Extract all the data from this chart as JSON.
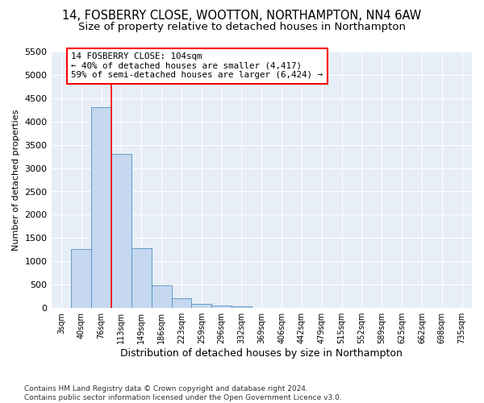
{
  "title1": "14, FOSBERRY CLOSE, WOOTTON, NORTHAMPTON, NN4 6AW",
  "title2": "Size of property relative to detached houses in Northampton",
  "xlabel": "Distribution of detached houses by size in Northampton",
  "ylabel": "Number of detached properties",
  "footnote": "Contains HM Land Registry data © Crown copyright and database right 2024.\nContains public sector information licensed under the Open Government Licence v3.0.",
  "bar_labels": [
    "3sqm",
    "40sqm",
    "76sqm",
    "113sqm",
    "149sqm",
    "186sqm",
    "223sqm",
    "259sqm",
    "296sqm",
    "332sqm",
    "369sqm",
    "406sqm",
    "442sqm",
    "479sqm",
    "515sqm",
    "552sqm",
    "589sqm",
    "625sqm",
    "662sqm",
    "698sqm",
    "735sqm"
  ],
  "bar_values": [
    0,
    1260,
    4300,
    3300,
    1280,
    480,
    215,
    85,
    55,
    40,
    0,
    0,
    0,
    0,
    0,
    0,
    0,
    0,
    0,
    0,
    0
  ],
  "bar_color": "#c5d8f0",
  "bar_edge_color": "#5090c0",
  "vline_x": 2.5,
  "vline_color": "red",
  "annotation_text": "14 FOSBERRY CLOSE: 104sqm\n← 40% of detached houses are smaller (4,417)\n59% of semi-detached houses are larger (6,424) →",
  "annotation_box_color": "white",
  "annotation_box_edge": "red",
  "ylim": [
    0,
    5500
  ],
  "yticks": [
    0,
    500,
    1000,
    1500,
    2000,
    2500,
    3000,
    3500,
    4000,
    4500,
    5000,
    5500
  ],
  "bg_color": "#e8eef7",
  "grid_color": "white",
  "title1_fontsize": 10.5,
  "title2_fontsize": 9.5
}
